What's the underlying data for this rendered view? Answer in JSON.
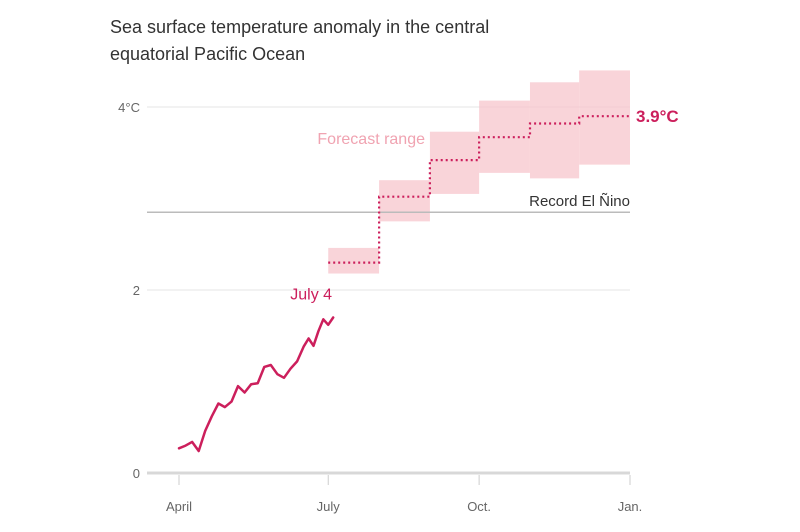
{
  "chart_data": {
    "type": "line",
    "title": "Sea surface temperature anomaly in the central equatorial Pacific Ocean",
    "x_axis": {
      "range": [
        "2023-04-01",
        "2024-01-01"
      ],
      "tick_labels": [
        {
          "date": "2023-04-01",
          "label": "April"
        },
        {
          "date": "2023-07-01",
          "label": "July"
        },
        {
          "date": "2023-10-01",
          "label": "Oct."
        },
        {
          "date": "2024-01-01",
          "label": "Jan."
        }
      ]
    },
    "y_axis": {
      "range": [
        0,
        4.6
      ],
      "ticks": [
        {
          "value": 0,
          "label": "0"
        },
        {
          "value": 2,
          "label": "2"
        },
        {
          "value": 4,
          "label": "4°C"
        }
      ],
      "grid": true
    },
    "observed": {
      "color": "#cc1f5c",
      "points": [
        [
          "2023-04-01",
          0.27
        ],
        [
          "2023-04-05",
          0.3
        ],
        [
          "2023-04-09",
          0.34
        ],
        [
          "2023-04-13",
          0.24
        ],
        [
          "2023-04-17",
          0.46
        ],
        [
          "2023-04-21",
          0.62
        ],
        [
          "2023-04-25",
          0.76
        ],
        [
          "2023-04-29",
          0.72
        ],
        [
          "2023-05-03",
          0.78
        ],
        [
          "2023-05-07",
          0.95
        ],
        [
          "2023-05-11",
          0.88
        ],
        [
          "2023-05-15",
          0.97
        ],
        [
          "2023-05-19",
          0.98
        ],
        [
          "2023-05-23",
          1.16
        ],
        [
          "2023-05-27",
          1.18
        ],
        [
          "2023-05-31",
          1.08
        ],
        [
          "2023-06-04",
          1.04
        ],
        [
          "2023-06-08",
          1.14
        ],
        [
          "2023-06-12",
          1.22
        ],
        [
          "2023-06-16",
          1.38
        ],
        [
          "2023-06-19",
          1.47
        ],
        [
          "2023-06-22",
          1.39
        ],
        [
          "2023-06-25",
          1.55
        ],
        [
          "2023-06-28",
          1.68
        ],
        [
          "2023-07-01",
          1.62
        ],
        [
          "2023-07-04",
          1.7
        ]
      ],
      "annotation": "July 4"
    },
    "forecast": {
      "color": "#cc1f5c",
      "range_color": "#f7c5cc",
      "range_label": "Forecast range",
      "months": [
        {
          "start": "2023-07-01",
          "end": "2023-08-01",
          "median": 2.3,
          "low": 2.18,
          "high": 2.46
        },
        {
          "start": "2023-08-01",
          "end": "2023-09-01",
          "median": 3.02,
          "low": 2.75,
          "high": 3.2
        },
        {
          "start": "2023-09-01",
          "end": "2023-10-01",
          "median": 3.42,
          "low": 3.05,
          "high": 3.73
        },
        {
          "start": "2023-10-01",
          "end": "2023-11-01",
          "median": 3.67,
          "low": 3.28,
          "high": 4.07
        },
        {
          "start": "2023-11-01",
          "end": "2023-12-01",
          "median": 3.82,
          "low": 3.22,
          "high": 4.27
        },
        {
          "start": "2023-12-01",
          "end": "2024-01-01",
          "median": 3.9,
          "low": 3.37,
          "high": 4.4
        }
      ],
      "end_label": "3.9°C"
    },
    "reference_line": {
      "value": 2.85,
      "label": "Record El Ñino",
      "color": "#bbbbbb"
    }
  }
}
